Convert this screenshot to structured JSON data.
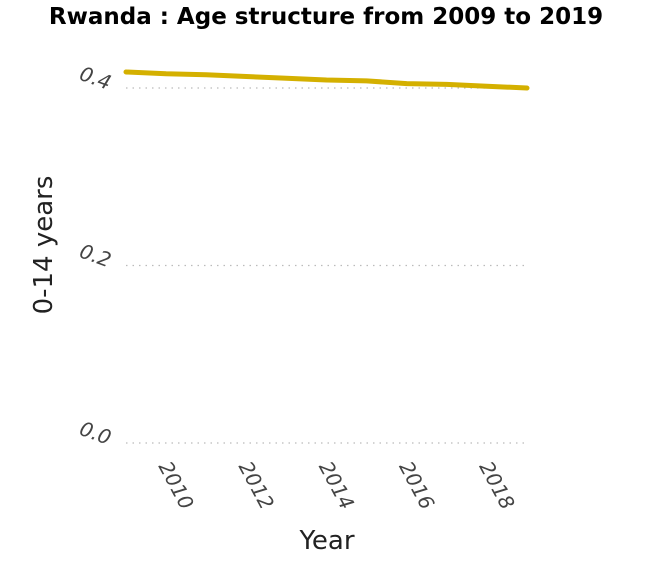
{
  "chart_data": {
    "type": "line",
    "title": "Rwanda : Age structure from 2009 to 2019",
    "xlabel": "Year",
    "ylabel": "0-14 years",
    "xlim": [
      2009,
      2019
    ],
    "ylim": [
      0.0,
      0.42
    ],
    "x_ticks": [
      "2010",
      "2012",
      "2014",
      "2016",
      "2018"
    ],
    "y_ticks": [
      "0.0",
      "0.2",
      "0.4"
    ],
    "grid": "horizontal-dotted",
    "series": [
      {
        "color": "#d4b000",
        "x": [
          2009,
          2010,
          2011,
          2012,
          2013,
          2014,
          2015,
          2016,
          2017,
          2018,
          2019
        ],
        "values": [
          0.418,
          0.416,
          0.415,
          0.413,
          0.411,
          0.409,
          0.408,
          0.405,
          0.404,
          0.402,
          0.4
        ]
      }
    ]
  }
}
